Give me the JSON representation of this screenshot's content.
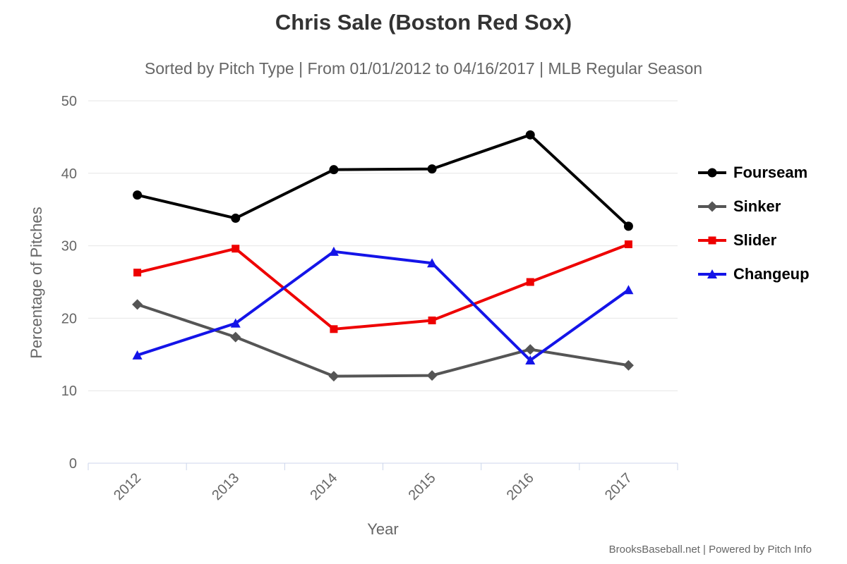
{
  "footer": {
    "text": "BrooksBaseball.net | Powered by Pitch Info"
  },
  "chart_data": {
    "type": "line",
    "title": "Chris Sale (Boston Red Sox)",
    "subtitle": "Sorted by Pitch Type | From 01/01/2012 to 04/16/2017 | MLB Regular Season",
    "xlabel": "Year",
    "ylabel": "Percentage of Pitches",
    "categories": [
      "2012",
      "2013",
      "2014",
      "2015",
      "2016",
      "2017"
    ],
    "series": [
      {
        "name": "Fourseam",
        "color": "#000000",
        "marker": "circle",
        "values": [
          37.0,
          33.8,
          40.5,
          40.6,
          45.3,
          32.7
        ]
      },
      {
        "name": "Sinker",
        "color": "#555555",
        "marker": "diamond",
        "values": [
          21.9,
          17.4,
          12.0,
          12.1,
          15.7,
          13.5
        ]
      },
      {
        "name": "Slider",
        "color": "#ee0000",
        "marker": "square",
        "values": [
          26.3,
          29.6,
          18.5,
          19.7,
          25.0,
          30.2
        ]
      },
      {
        "name": "Changeup",
        "color": "#1414e8",
        "marker": "triangle",
        "values": [
          14.9,
          19.3,
          29.2,
          27.6,
          14.2,
          23.9
        ]
      }
    ],
    "ylim": [
      0,
      50
    ],
    "yticks": [
      0,
      10,
      20,
      30,
      40,
      50
    ],
    "grid": true,
    "legend_position": "right",
    "colors": {
      "gridline": "#e6e6e6",
      "axis_line": "#ccd6eb",
      "tick_label": "#666666",
      "title_text": "#333333"
    }
  }
}
